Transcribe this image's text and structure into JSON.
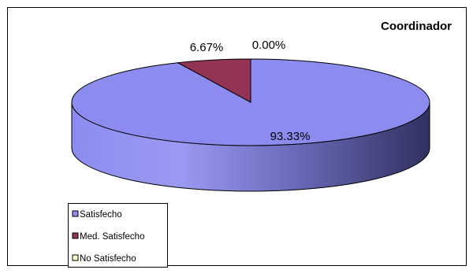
{
  "chart_data": {
    "type": "pie",
    "title": "Coordinador",
    "categories": [
      "Satisfecho",
      "Med. Satisfecho",
      "No Satisfecho"
    ],
    "values": [
      93.33,
      6.67,
      0.0
    ],
    "labels": [
      "93.33%",
      "6.67%",
      "0.00%"
    ],
    "colors": [
      "#8C8CF0",
      "#933355",
      "#FFFFCC"
    ],
    "style": "3d",
    "legend": {
      "position": "bottom-left",
      "entries": [
        "Satisfecho",
        "Med. Satisfecho",
        "No Satisfecho"
      ]
    }
  }
}
